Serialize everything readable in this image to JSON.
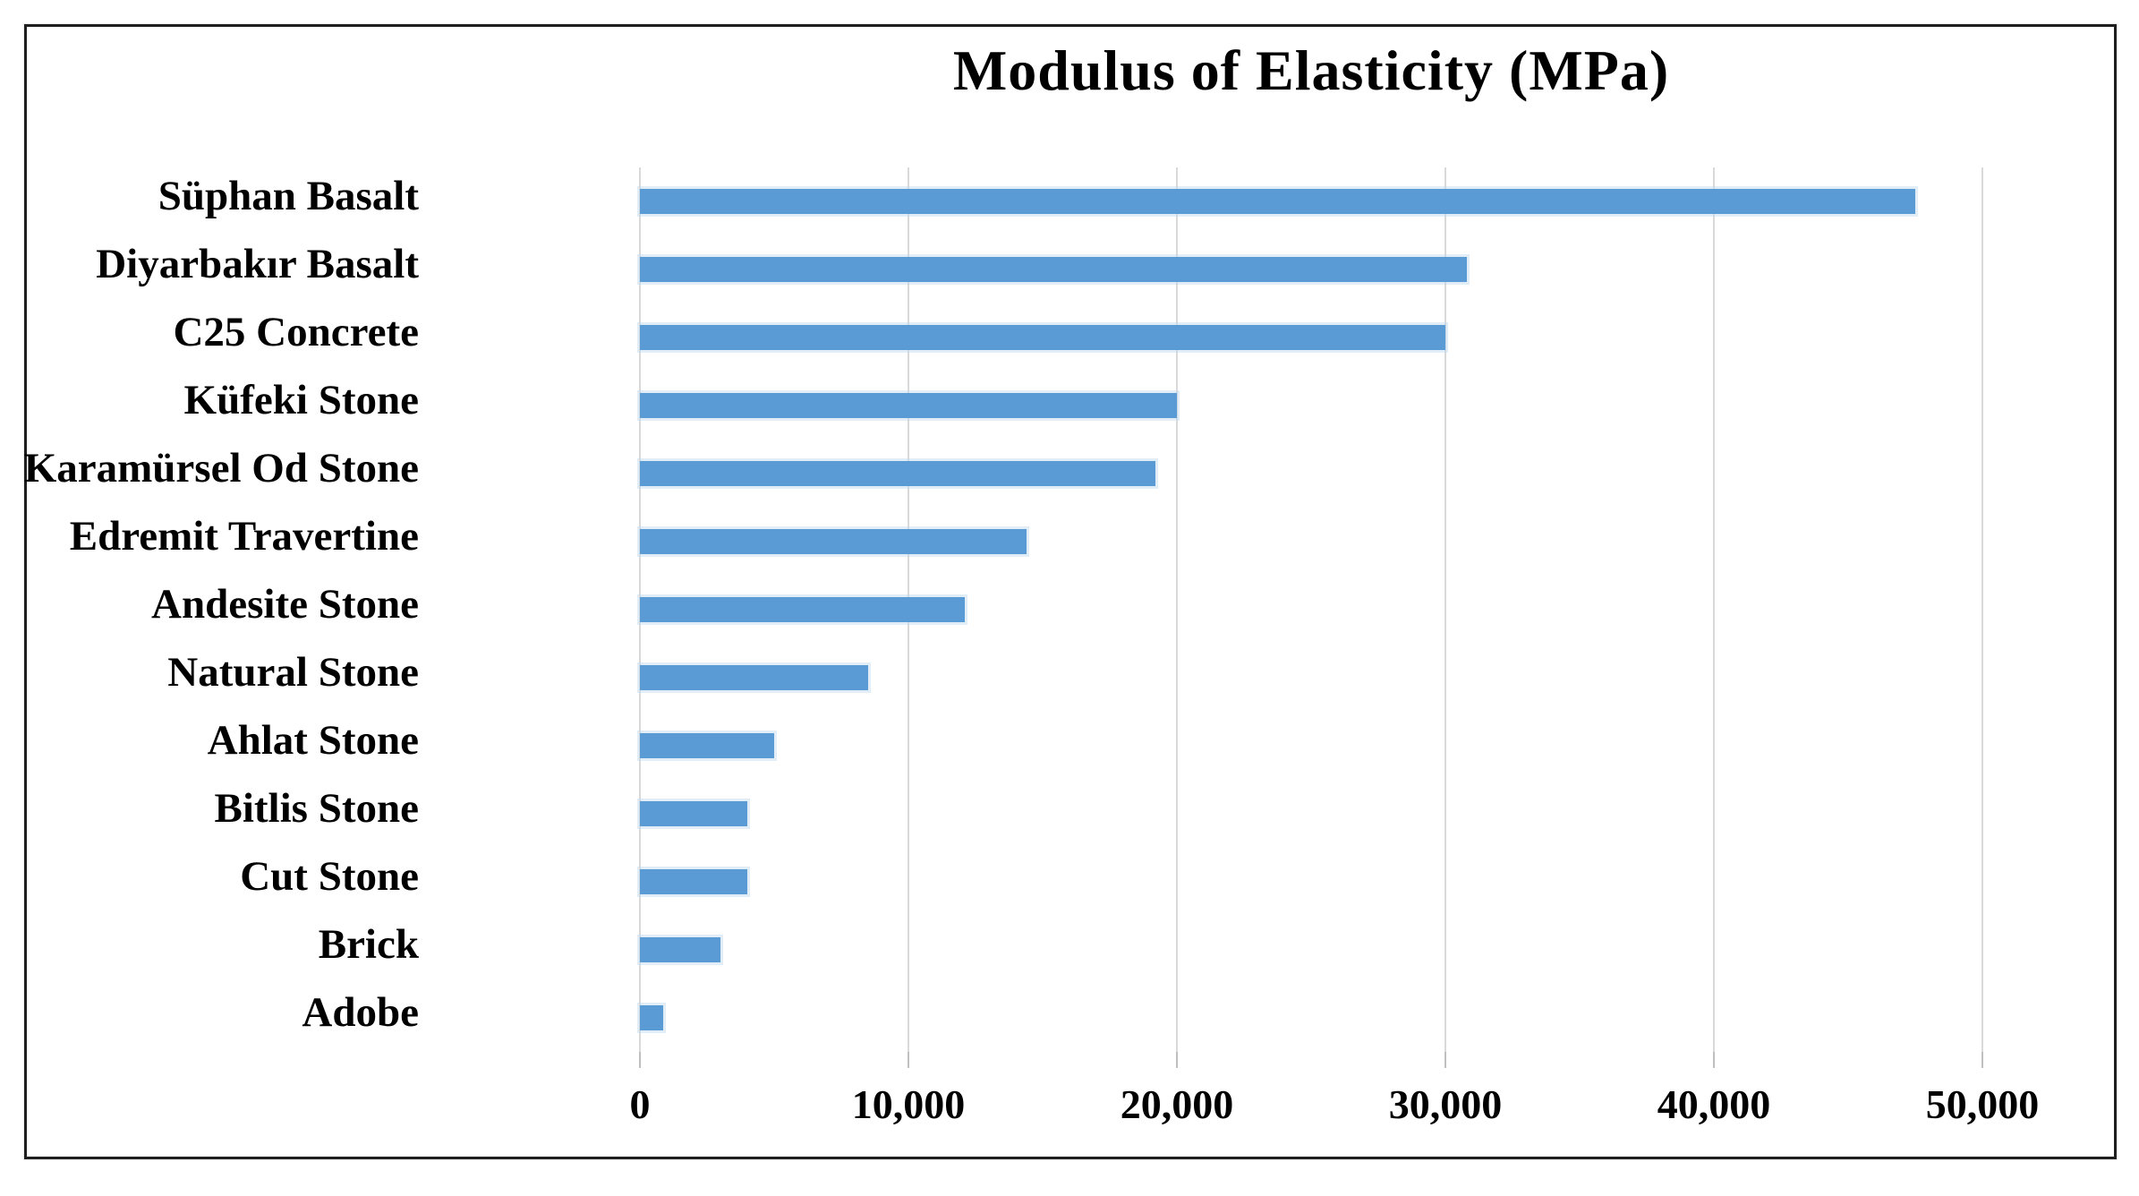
{
  "chart_data": {
    "type": "bar",
    "orientation": "horizontal",
    "title": "Modulus of Elasticity (MPa)",
    "categories": [
      "Süphan Basalt",
      "Diyarbakır Basalt",
      "C25 Concrete",
      "Küfeki Stone",
      "Karamürsel Od Stone",
      "Edremit Travertine",
      "Andesite Stone",
      "Natural Stone",
      "Ahlat Stone",
      "Bitlis Stone",
      "Cut Stone",
      "Brick",
      "Adobe"
    ],
    "values": [
      47500,
      30800,
      30000,
      20000,
      19200,
      14400,
      12100,
      8500,
      5000,
      4000,
      4000,
      3000,
      850
    ],
    "unit": "MPa",
    "xlabel": "",
    "ylabel": "",
    "xlim": [
      0,
      50000
    ],
    "x_tick_labels": [
      "0",
      "10,000",
      "20,000",
      "30,000",
      "40,000",
      "50,000"
    ],
    "x_tick_values": [
      0,
      10000,
      20000,
      30000,
      40000,
      50000
    ],
    "grid": "vertical-only",
    "legend_position": "none",
    "colors": {
      "bar_fill": "#5B9BD5",
      "bar_edge": "#BDD7EE",
      "gridline": "#D9D9D9",
      "tick_mark": "#BFBFBF",
      "text": "#000000",
      "frame_border": "#1F1F1F",
      "background": "#FFFFFF"
    }
  }
}
